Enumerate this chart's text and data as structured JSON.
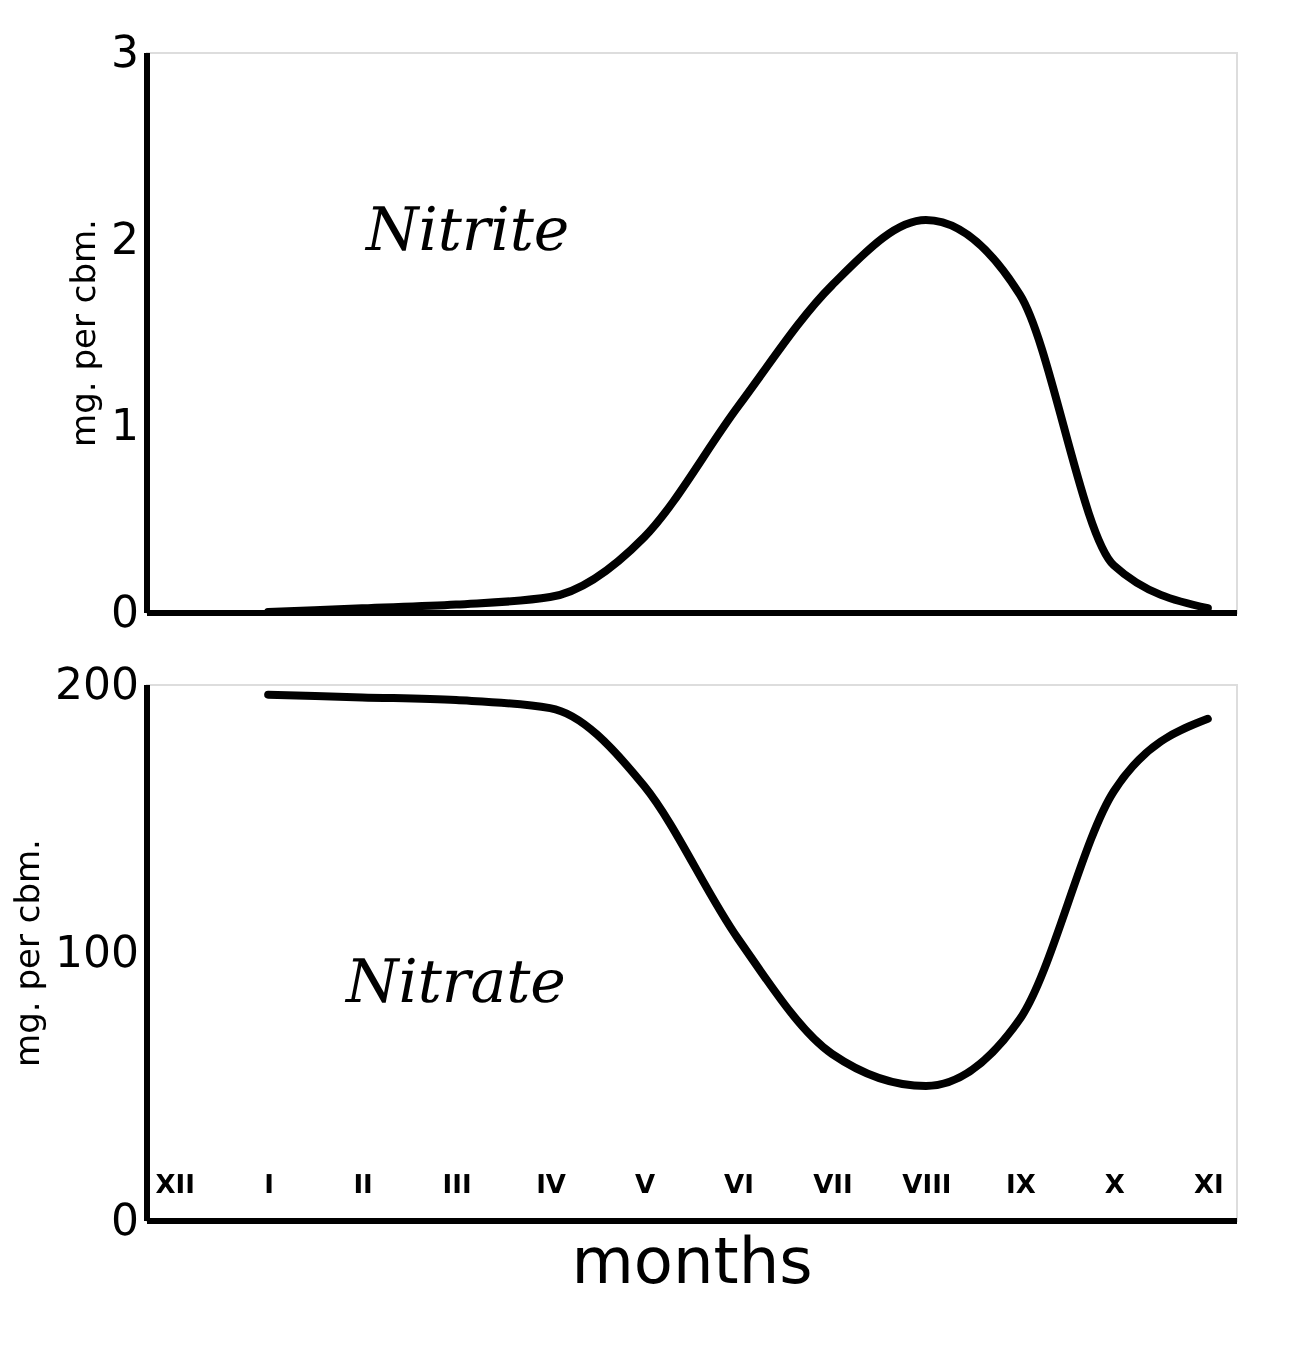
{
  "chart_data": [
    {
      "type": "line",
      "ylim": [
        0,
        3
      ],
      "yticks": [
        0,
        1,
        2,
        3
      ],
      "ylabel": "mg. per cbm.",
      "tick_labels": "y",
      "grid": false,
      "marker": "none",
      "line_style": "solid",
      "series": [
        {
          "name": "Nitrite",
          "color": "#000000",
          "values": [
            null,
            0,
            0.02,
            0.04,
            0.08,
            0.4,
            1.1,
            1.75,
            2.1,
            1.7,
            0.25,
            0.02
          ]
        }
      ]
    },
    {
      "type": "line",
      "ylim": [
        0,
        200
      ],
      "yticks": [
        0,
        100,
        200
      ],
      "ylabel": "mg. per cbm.",
      "xlabel": "months",
      "grid": false,
      "marker": "none",
      "line_style": "solid",
      "categories": [
        "XII",
        "I",
        "II",
        "III",
        "IV",
        "V",
        "VI",
        "VII",
        "VIII",
        "IX",
        "X",
        "XI"
      ],
      "series": [
        {
          "name": "Nitrate",
          "color": "#000000",
          "values": [
            null,
            196,
            195,
            194,
            191,
            162,
            105,
            62,
            50,
            75,
            160,
            187
          ]
        }
      ]
    }
  ]
}
